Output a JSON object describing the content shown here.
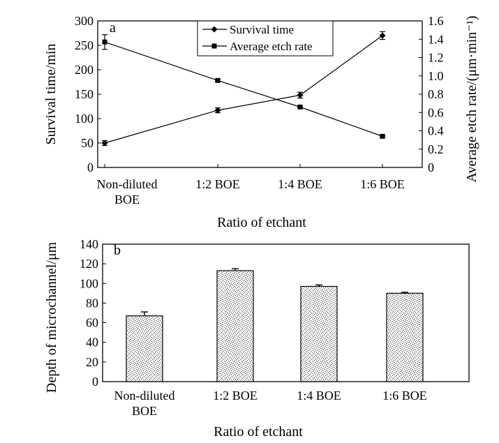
{
  "chart_data": [
    {
      "type": "line",
      "panel_label": "a",
      "categories": [
        "Non-diluted\nBOE",
        "1:2 BOE",
        "1:4 BOE",
        "1:6 BOE"
      ],
      "xlabel": "Ratio of etchant",
      "ylabel": "Survival time/min",
      "y2label": "Average etch rate/(μm·min⁻¹)",
      "ylim": [
        0,
        300
      ],
      "y2lim": [
        0,
        1.6
      ],
      "yticks": [
        "0",
        "50",
        "100",
        "150",
        "200",
        "250",
        "300"
      ],
      "y2ticks": [
        "0",
        "0.2",
        "0.4",
        "0.6",
        "0.8",
        "1.0",
        "1.2",
        "1.4",
        "1.6"
      ],
      "legend_position": "top",
      "series": [
        {
          "name": "Survival time",
          "axis": "left",
          "marker": "diamond",
          "values": [
            50,
            117,
            148,
            270
          ],
          "errors": [
            5,
            5,
            6,
            8
          ]
        },
        {
          "name": "Average etch rate",
          "axis": "right",
          "marker": "square",
          "values": [
            1.37,
            0.95,
            0.66,
            0.34
          ],
          "errors": [
            0.08,
            0.01,
            0.01,
            0.01
          ]
        }
      ]
    },
    {
      "type": "bar",
      "panel_label": "b",
      "categories": [
        "Non-diluted\nBOE",
        "1:2 BOE",
        "1:4 BOE",
        "1:6 BOE"
      ],
      "xlabel": "Ratio of etchant",
      "ylabel": "Depth of microchannel/μm",
      "ylim": [
        0,
        140
      ],
      "yticks": [
        "0",
        "20",
        "40",
        "60",
        "80",
        "100",
        "120",
        "140"
      ],
      "values": [
        67,
        113,
        97,
        90
      ],
      "errors": [
        4,
        2,
        1.5,
        1
      ]
    }
  ]
}
